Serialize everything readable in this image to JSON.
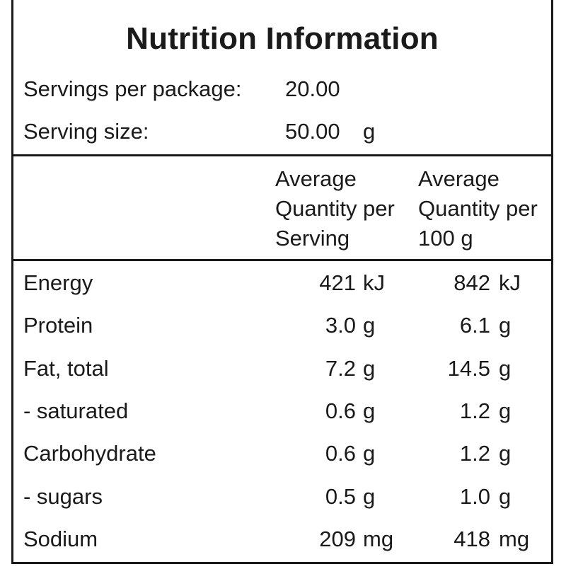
{
  "title": "Nutrition Information",
  "servings_per_package": {
    "label": "Servings per package:",
    "value": "20.00"
  },
  "serving_size": {
    "label": "Serving size:",
    "value": "50.00",
    "unit": "g"
  },
  "column_headers": {
    "per_serving": [
      "Average",
      "Quantity per",
      "Serving"
    ],
    "per_100g": [
      "Average",
      "Quantity per",
      "100 g"
    ]
  },
  "rows": [
    {
      "name": "Energy",
      "per_serving": "421",
      "per_serving_unit": "kJ",
      "per_100g": "842",
      "per_100g_unit": "kJ"
    },
    {
      "name": "Protein",
      "per_serving": "3.0",
      "per_serving_unit": "g",
      "per_100g": "6.1",
      "per_100g_unit": "g"
    },
    {
      "name": "Fat, total",
      "per_serving": "7.2",
      "per_serving_unit": "g",
      "per_100g": "14.5",
      "per_100g_unit": "g"
    },
    {
      "name": "- saturated",
      "per_serving": "0.6",
      "per_serving_unit": "g",
      "per_100g": "1.2",
      "per_100g_unit": "g"
    },
    {
      "name": "Carbohydrate",
      "per_serving": "0.6",
      "per_serving_unit": "g",
      "per_100g": "1.2",
      "per_100g_unit": "g"
    },
    {
      "name": "- sugars",
      "per_serving": "0.5",
      "per_serving_unit": "g",
      "per_100g": "1.0",
      "per_100g_unit": "g"
    },
    {
      "name": "Sodium",
      "per_serving": "209",
      "per_serving_unit": "mg",
      "per_100g": "418",
      "per_100g_unit": "mg"
    }
  ]
}
